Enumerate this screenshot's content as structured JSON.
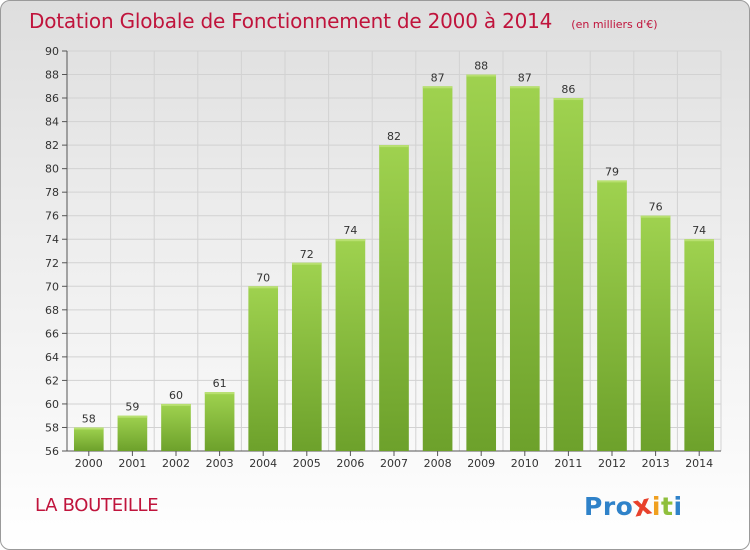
{
  "chart_data": {
    "type": "bar",
    "title": "Dotation Globale de Fonctionnement de 2000 à 2014",
    "subtitle": "(en milliers d'€)",
    "categories": [
      "2000",
      "2001",
      "2002",
      "2003",
      "2004",
      "2005",
      "2006",
      "2007",
      "2008",
      "2009",
      "2010",
      "2011",
      "2012",
      "2013",
      "2014"
    ],
    "values": [
      58,
      59,
      60,
      61,
      70,
      72,
      74,
      82,
      87,
      88,
      87,
      86,
      79,
      76,
      74
    ],
    "value_labels": [
      "58",
      "59",
      "60",
      "61",
      "70",
      "72",
      "74",
      "82",
      "87",
      "88",
      "87",
      "86",
      "79",
      "76",
      "74"
    ],
    "ylim": [
      56,
      90
    ],
    "yticks": [
      "56",
      "58",
      "60",
      "62",
      "64",
      "66",
      "68",
      "70",
      "72",
      "74",
      "76",
      "78",
      "80",
      "82",
      "84",
      "86",
      "88",
      "90"
    ],
    "grid": true,
    "bar_color": "#8ac43f",
    "title_color": "#c0143c"
  },
  "commune": "LA BOUTEILLE",
  "logo": {
    "text": "Proxiti",
    "letters": [
      {
        "ch": "P",
        "color": "#2f82c9"
      },
      {
        "ch": "r",
        "color": "#2f82c9"
      },
      {
        "ch": "o",
        "color": "#2f82c9"
      },
      {
        "ch": "x",
        "color": "#e8412c"
      },
      {
        "ch": "i",
        "color": "#f0a020"
      },
      {
        "ch": "t",
        "color": "#8fbf3c"
      },
      {
        "ch": "i",
        "color": "#2f82c9"
      }
    ]
  }
}
